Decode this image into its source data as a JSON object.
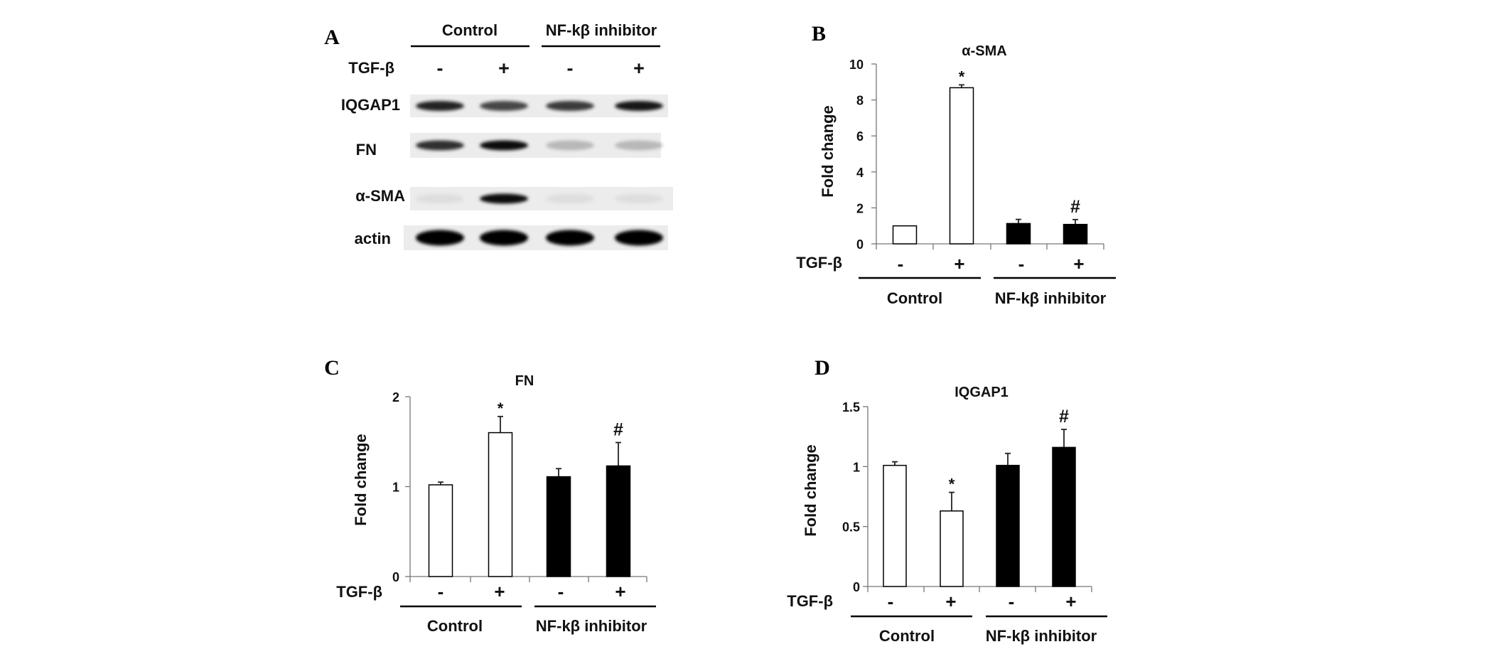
{
  "panel_a": {
    "letter": "A",
    "groups": [
      "Control",
      "NF-kβ inhibitor"
    ],
    "treatment_label": "TGF-β",
    "treatment_signs": [
      "-",
      "+",
      "-",
      "+"
    ],
    "rows": [
      {
        "label": "IQGAP1",
        "band_intensity": [
          0.85,
          0.7,
          0.75,
          0.9
        ]
      },
      {
        "label": "FN",
        "band_intensity": [
          0.8,
          0.95,
          0.22,
          0.22
        ]
      },
      {
        "label": "α-SMA",
        "band_intensity": [
          0.06,
          0.95,
          0.06,
          0.06
        ]
      },
      {
        "label": "actin",
        "band_intensity": [
          1,
          1,
          1,
          1
        ]
      }
    ]
  },
  "chart_data": [
    {
      "panel": "B",
      "type": "bar",
      "title": "α-SMA",
      "ylabel": "Fold change",
      "ylim": [
        0,
        10
      ],
      "yticks": [
        "0",
        "2",
        "4",
        "6",
        "8",
        "10"
      ],
      "ytick_values": [
        0,
        2,
        4,
        6,
        8,
        10
      ],
      "categories": [
        "-",
        "+",
        "-",
        "+"
      ],
      "category_row_label": "TGF-β",
      "groups": [
        "Control",
        "NF-kβ inhibitor"
      ],
      "values": [
        1.0,
        8.68,
        1.13,
        1.08
      ],
      "errors": [
        0.0,
        0.16,
        0.23,
        0.27
      ],
      "annotations": [
        "",
        "*",
        "",
        "#"
      ],
      "bar_colors": [
        "#ffffff",
        "#ffffff",
        "#000000",
        "#000000"
      ]
    },
    {
      "panel": "C",
      "type": "bar",
      "title": "FN",
      "ylabel": "Fold change",
      "ylim": [
        0,
        2
      ],
      "yticks": [
        "0",
        "1",
        "2"
      ],
      "ytick_values": [
        0,
        1,
        2
      ],
      "categories": [
        "-",
        "+",
        "-",
        "+"
      ],
      "category_row_label": "TGF-β",
      "groups": [
        "Control",
        "NF-kβ inhibitor"
      ],
      "values": [
        1.02,
        1.6,
        1.11,
        1.23
      ],
      "errors": [
        0.03,
        0.18,
        0.09,
        0.26
      ],
      "annotations": [
        "",
        "*",
        "",
        "#"
      ],
      "bar_colors": [
        "#ffffff",
        "#ffffff",
        "#000000",
        "#000000"
      ]
    },
    {
      "panel": "D",
      "type": "bar",
      "title": "IQGAP1",
      "ylabel": "Fold change",
      "ylim": [
        0,
        1.5
      ],
      "yticks": [
        "0",
        "0.5",
        "1",
        "1.5"
      ],
      "ytick_values": [
        0,
        0.5,
        1,
        1.5
      ],
      "categories": [
        "-",
        "+",
        "-",
        "+"
      ],
      "category_row_label": "TGF-β",
      "groups": [
        "Control",
        "NF-kβ inhibitor"
      ],
      "values": [
        1.01,
        0.63,
        1.01,
        1.16
      ],
      "errors": [
        0.03,
        0.155,
        0.1,
        0.15
      ],
      "annotations": [
        "",
        "*",
        "",
        "#"
      ],
      "bar_colors": [
        "#ffffff",
        "#ffffff",
        "#000000",
        "#000000"
      ]
    }
  ]
}
